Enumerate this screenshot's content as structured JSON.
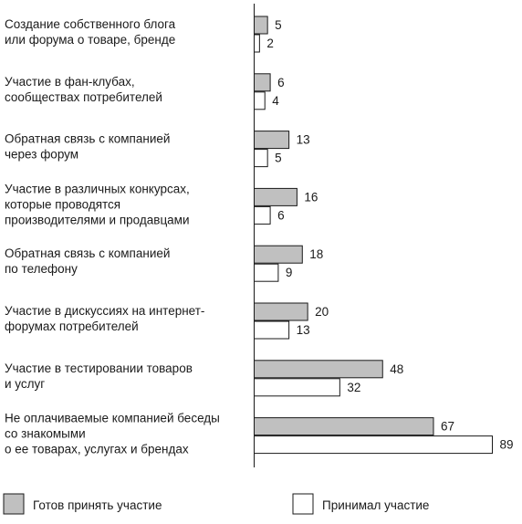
{
  "chart_data": {
    "type": "bar",
    "orientation": "horizontal",
    "categories": [
      [
        "Создание собственного блога",
        "или форума о товаре, бренде"
      ],
      [
        "Участие в фан-клубах,",
        "сообществах потребителей"
      ],
      [
        "Обратная связь с компанией",
        "через форум"
      ],
      [
        "Участие в различных конкурсах,",
        "которые проводятся",
        "производителями и продавцами"
      ],
      [
        "Обратная связь с компанией",
        "по телефону"
      ],
      [
        "Участие в дискуссиях на интернет-",
        "форумах потребителей"
      ],
      [
        "Участие в тестировании товаров",
        "и услуг"
      ],
      [
        "Не оплачиваемые компанией беседы",
        "со знакомыми",
        "о ее товарах, услугах и брендах"
      ]
    ],
    "series": [
      {
        "name": "Готов принять участие",
        "color": "#c0c0c0",
        "values": [
          5,
          6,
          13,
          16,
          18,
          20,
          48,
          67
        ]
      },
      {
        "name": "Принимал участие",
        "color": "#ffffff",
        "values": [
          2,
          4,
          5,
          6,
          9,
          13,
          32,
          89
        ]
      }
    ],
    "xlim": [
      0,
      89
    ],
    "grid": false,
    "legend_position": "bottom"
  }
}
